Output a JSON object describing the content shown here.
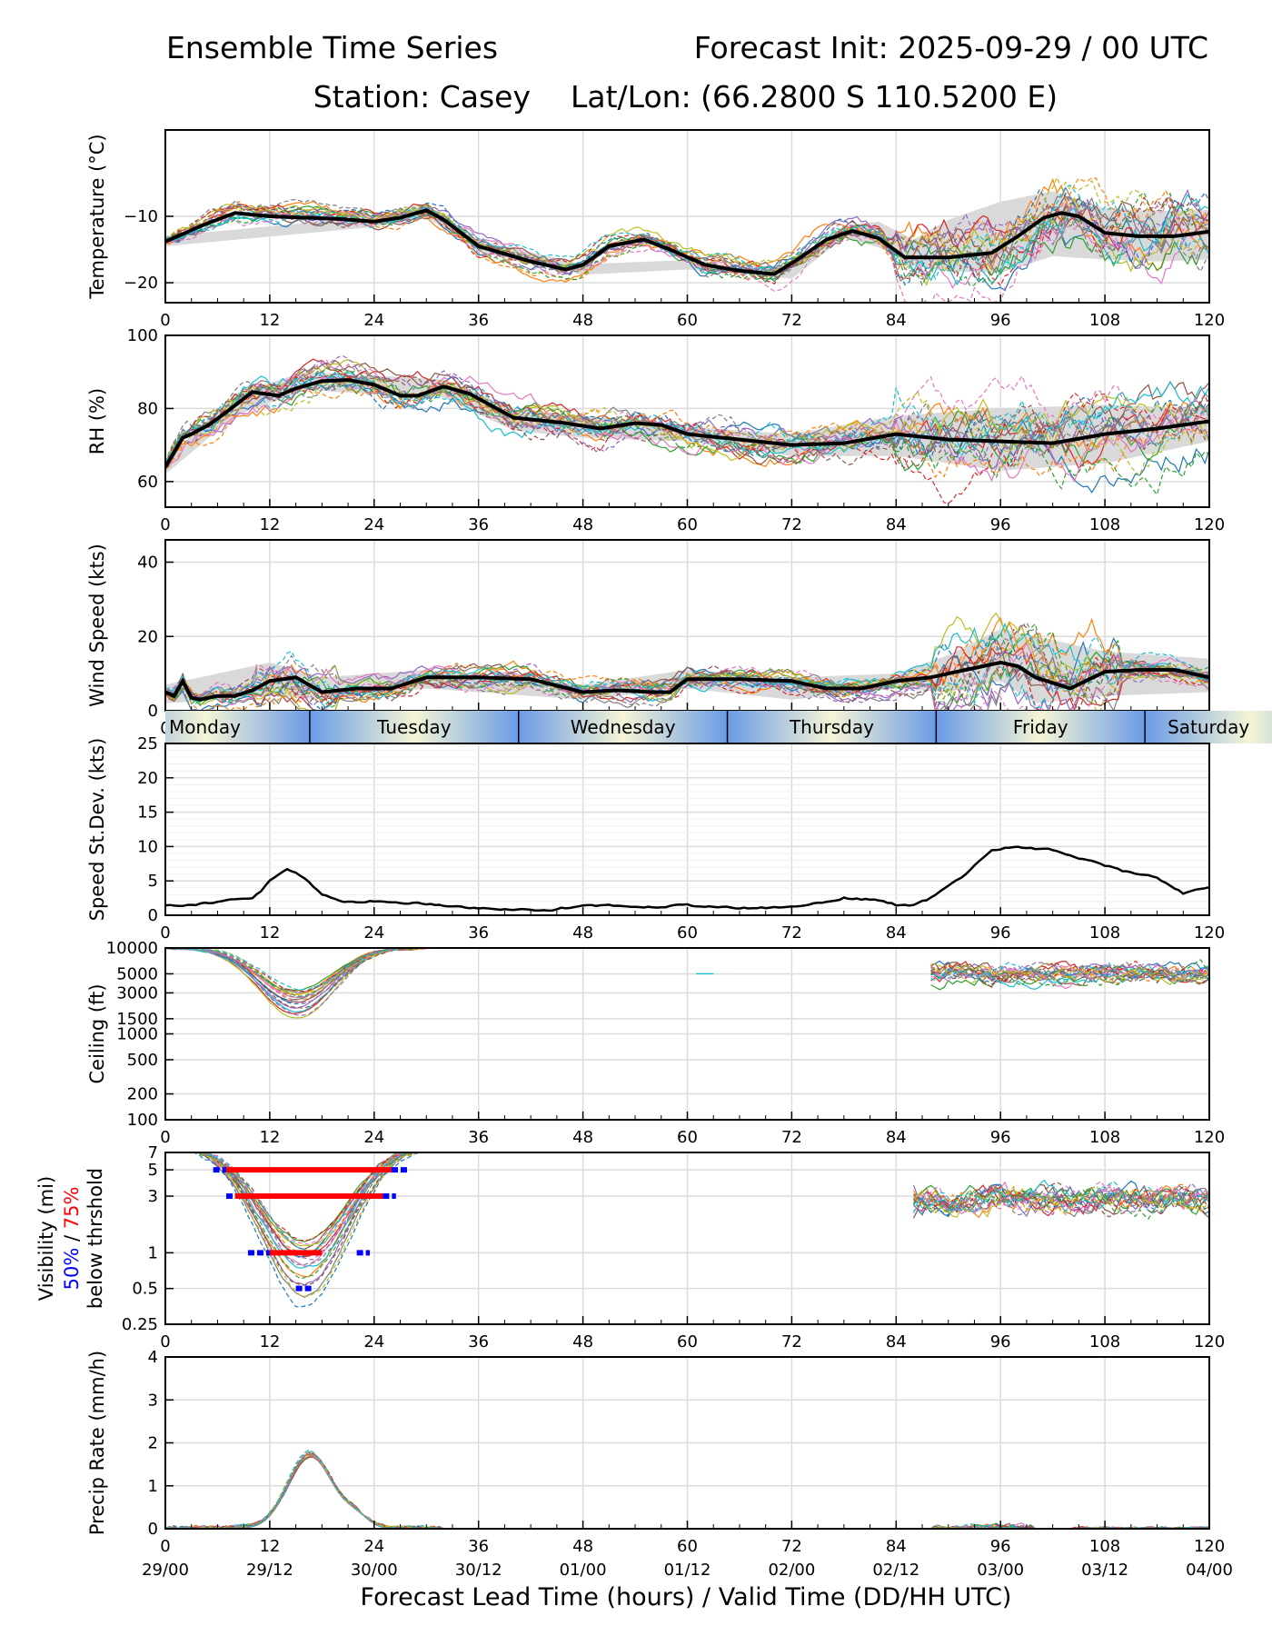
{
  "header": {
    "title_left": "Ensemble Time Series",
    "title_right": "Forecast Init: 2025-09-29 / 00 UTC",
    "station": "Station: Casey",
    "latlon": "Lat/Lon: (66.2800 S 110.5200 E)"
  },
  "x_axis": {
    "ticks": [
      0,
      12,
      24,
      36,
      48,
      60,
      72,
      84,
      96,
      108,
      120
    ],
    "valid_times": [
      "29/00",
      "29/12",
      "30/00",
      "30/12",
      "01/00",
      "01/12",
      "02/00",
      "02/12",
      "03/00",
      "03/12",
      "04/00"
    ],
    "label": "Forecast Lead Time (hours) / Valid Time (DD/HH UTC)",
    "range": [
      0,
      120
    ]
  },
  "colors": {
    "members": [
      "#1f77b4",
      "#ff7f0e",
      "#2ca02c",
      "#d62728",
      "#9467bd",
      "#8c564b",
      "#e377c2",
      "#7f7f7f",
      "#bcbd22",
      "#17becf"
    ],
    "mean": "#000000",
    "spread": "#d9d9d9",
    "vis_50": "#0000ff",
    "vis_75": "#ff0000",
    "day_blue": "#6a9be6",
    "day_cream": "#f5f5d5"
  },
  "day_bar": {
    "days": [
      "Monday",
      "Tuesday",
      "Wednesday",
      "Thursday",
      "Friday",
      "Saturday"
    ],
    "boundaries": [
      16.6,
      40.6,
      64.6,
      88.6,
      112.6
    ]
  },
  "chart_data": [
    {
      "type": "line",
      "id": "temperature",
      "ylabel": "Temperature (°C)",
      "ylim": [
        -23,
        3
      ],
      "yticks": [
        -10,
        -20
      ],
      "ytick_labels": [
        "−10",
        "−20"
      ],
      "mean": {
        "x": [
          0,
          4,
          8,
          12,
          16,
          20,
          24,
          27,
          30,
          32,
          36,
          42,
          46,
          48,
          51,
          55,
          58,
          62,
          66,
          70,
          73,
          76,
          79,
          82,
          85,
          90,
          95,
          98,
          101,
          103,
          105,
          108,
          112,
          116,
          120
        ],
        "y": [
          -13.8,
          -11.5,
          -9.5,
          -10,
          -10.2,
          -10.4,
          -10.8,
          -10.2,
          -9.1,
          -10.5,
          -14.5,
          -16.8,
          -18,
          -17.3,
          -14.5,
          -13.5,
          -15,
          -17.3,
          -18.2,
          -18.7,
          -16.2,
          -13.5,
          -12.2,
          -13.3,
          -16.2,
          -16.2,
          -15.5,
          -13,
          -10.2,
          -9.5,
          -10,
          -12.5,
          -13,
          -13,
          -12.3
        ]
      },
      "spread": {
        "x": [
          0,
          24,
          30,
          36,
          48,
          60,
          72,
          78,
          82,
          86,
          90,
          96,
          102,
          108,
          114,
          120
        ],
        "lo": [
          -14.5,
          -11.6,
          -10.1,
          -15.3,
          -18.8,
          -18,
          -19.4,
          -13.2,
          -14.7,
          -17.4,
          -18.3,
          -18.5,
          -16,
          -16.5,
          -16.8,
          -16.5
        ],
        "hi": [
          -13,
          -10,
          -8.4,
          -13.6,
          -17.2,
          -16.6,
          -18,
          -11.4,
          -10.8,
          -13.5,
          -10.5,
          -7.8,
          -6.2,
          -8.8,
          -9.2,
          -9
        ]
      }
    },
    {
      "type": "line",
      "id": "rh",
      "ylabel": "RH (%)",
      "ylim": [
        53,
        100
      ],
      "yticks": [
        60,
        80,
        100
      ],
      "ytick_labels": [
        "60",
        "80",
        "100"
      ],
      "mean": {
        "x": [
          0,
          1,
          2,
          3,
          5,
          7,
          10,
          13,
          15,
          18,
          21,
          24,
          27,
          29,
          32,
          35,
          40,
          46,
          50,
          54,
          57,
          60,
          66,
          72,
          78,
          84,
          90,
          96,
          102,
          108,
          114,
          120
        ],
        "y": [
          64,
          68,
          72,
          73,
          75.5,
          79,
          84.5,
          83.5,
          85.5,
          87.5,
          87.8,
          86.5,
          83.5,
          83.5,
          86,
          84,
          77.5,
          76,
          74.5,
          76,
          75.5,
          73,
          71.5,
          70,
          70.5,
          73,
          71.5,
          71,
          70.5,
          73,
          74.5,
          76.5
        ]
      },
      "spread": {
        "x": [
          0,
          8,
          16,
          24,
          32,
          40,
          48,
          60,
          72,
          84,
          96,
          108,
          120
        ],
        "lo": [
          62,
          78,
          85,
          84,
          83,
          74,
          72,
          71,
          67,
          67,
          63,
          65,
          71
        ],
        "hi": [
          66,
          84,
          90,
          89,
          88,
          80,
          78,
          75,
          73,
          78,
          80,
          81,
          80
        ]
      }
    },
    {
      "type": "line",
      "id": "wind",
      "ylabel": "Wind Speed (kts)",
      "ylim": [
        0,
        46
      ],
      "yticks": [
        0,
        20,
        40
      ],
      "ytick_labels": [
        "0",
        "20",
        "40"
      ],
      "mean": {
        "x": [
          0,
          1,
          2,
          3,
          4,
          6,
          8,
          10,
          12,
          15,
          18,
          22,
          26,
          30,
          36,
          42,
          48,
          52,
          56,
          58,
          60,
          66,
          72,
          76,
          80,
          84,
          88,
          92,
          96,
          98,
          100,
          104,
          108,
          112,
          116,
          120
        ],
        "y": [
          5,
          4,
          8,
          3.5,
          3,
          4,
          4,
          5.5,
          8,
          9,
          5,
          6,
          6,
          9,
          9,
          8.5,
          5,
          5.5,
          5,
          5,
          8.5,
          8.5,
          8,
          6,
          6,
          8,
          9,
          11,
          13,
          12,
          9,
          6,
          10.5,
          11,
          11,
          9
        ]
      },
      "spread": {
        "x": [
          0,
          12,
          18,
          30,
          48,
          60,
          72,
          84,
          90,
          96,
          100,
          108,
          120
        ],
        "lo": [
          2,
          4,
          3,
          6,
          3,
          6,
          3,
          6,
          5,
          8,
          2,
          4,
          5
        ],
        "hi": [
          7,
          13,
          9,
          11,
          7,
          11,
          9,
          10,
          15,
          22,
          20,
          16,
          14
        ]
      }
    },
    {
      "type": "line",
      "id": "speed_stdev",
      "ylabel": "Speed St.Dev. (kts)",
      "ylim": [
        0,
        25
      ],
      "yticks": [
        0,
        5,
        10,
        15,
        20,
        25
      ],
      "ytick_labels": [
        "0",
        "5",
        "10",
        "15",
        "20",
        "25"
      ],
      "mean": {
        "x": [
          0,
          3,
          6,
          10,
          11,
          12,
          14,
          16,
          18,
          20,
          24,
          30,
          36,
          44,
          48,
          56,
          60,
          66,
          72,
          76,
          78,
          82,
          84,
          86,
          88,
          92,
          95,
          98,
          102,
          106,
          110,
          114,
          117,
          120
        ],
        "y": [
          1.5,
          1.5,
          2,
          2.5,
          3.5,
          5,
          6.8,
          5.5,
          3,
          2,
          2,
          1.7,
          1,
          0.7,
          1.5,
          1.2,
          1.5,
          1,
          1.2,
          2,
          2.5,
          2.2,
          1.5,
          1.5,
          2.5,
          6,
          9.5,
          10,
          9.5,
          8,
          6.5,
          5.5,
          3.2,
          4.2
        ]
      }
    },
    {
      "type": "line",
      "id": "ceiling",
      "ylabel": "Ceiling (ft)",
      "yscale": "log",
      "ylim": [
        100,
        10000
      ],
      "yticks": [
        100,
        200,
        500,
        1000,
        1500,
        3000,
        5000,
        10000
      ],
      "ytick_labels": [
        "100",
        "200",
        "500",
        "1000",
        "1500",
        "3000",
        "5000",
        "10000"
      ]
    },
    {
      "type": "line",
      "id": "visibility",
      "ylabel": "Visibility (mi)",
      "yscale": "log",
      "ylim": [
        0.25,
        7
      ],
      "yticks": [
        0.25,
        0.5,
        1,
        3,
        5,
        7
      ],
      "ytick_labels": [
        "0.25",
        "0.5",
        "1",
        "3",
        "5",
        "7"
      ],
      "ylabel_pct50": "50%",
      "ylabel_sep": " / ",
      "ylabel_pct75": "75%",
      "ylabel_line3": "below thrshold",
      "threshold_bars": [
        {
          "level": 5,
          "p75": [
            7,
            26
          ],
          "p50": [
            [
              5.5,
              7
            ],
            [
              26,
              28
            ]
          ]
        },
        {
          "level": 3,
          "p75": [
            8,
            25
          ],
          "p50": [
            [
              7,
              8
            ],
            [
              25,
              26.5
            ]
          ]
        },
        {
          "level": 1,
          "p75": [
            12,
            18
          ],
          "p50": [
            [
              9.5,
              12
            ],
            [
              22,
              23.5
            ]
          ]
        },
        {
          "level": 0.5,
          "p75": [],
          "p50": [
            [
              15,
              17
            ]
          ]
        }
      ]
    },
    {
      "type": "line",
      "id": "precip",
      "ylabel": "Precip Rate (mm/h)",
      "ylim": [
        0,
        4
      ],
      "yticks": [
        0,
        1,
        2,
        3,
        4
      ],
      "ytick_labels": [
        "0",
        "1",
        "2",
        "3",
        "4"
      ]
    }
  ]
}
